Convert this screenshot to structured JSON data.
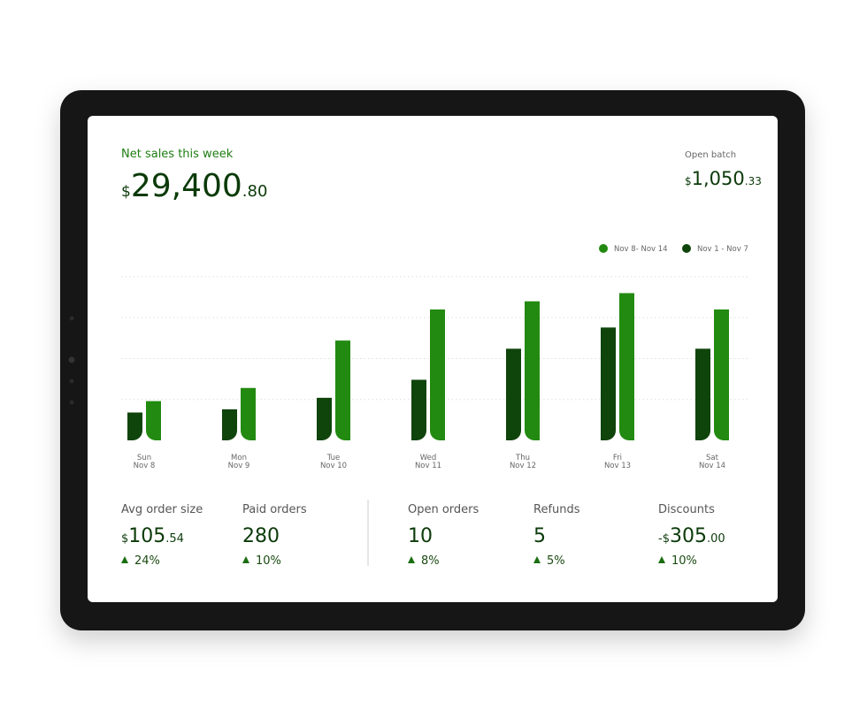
{
  "header": {
    "title": "Net sales this week",
    "currency": "$",
    "whole": "29,400",
    "cents": ".80"
  },
  "open_batch": {
    "label": "Open batch",
    "currency": "$",
    "whole": "1,050",
    "cents": ".33"
  },
  "chart_data": {
    "type": "bar",
    "categories": [
      "Sun",
      "Mon",
      "Tue",
      "Wed",
      "Thu",
      "Fri",
      "Sat"
    ],
    "dates": [
      "Nov 8",
      "Nov 9",
      "Nov 10",
      "Nov 11",
      "Nov 12",
      "Nov 13",
      "Nov 14"
    ],
    "series": [
      {
        "name": "Nov 8- Nov 14",
        "color": "#228a10",
        "values": [
          24,
          32,
          61,
          80,
          85,
          90,
          80
        ]
      },
      {
        "name": "Nov 1 - Nov 7",
        "color": "#0f440b",
        "values": [
          17,
          19,
          26,
          37,
          56,
          69,
          56
        ]
      }
    ],
    "ylim": [
      0,
      100
    ],
    "gridlines": [
      25,
      50,
      75,
      100
    ]
  },
  "stats": [
    {
      "label": "Avg order size",
      "prefix": "$",
      "value": "105",
      "suffix": ".54",
      "change": "24%"
    },
    {
      "label": "Paid orders",
      "value": "280",
      "change": "10%"
    },
    {
      "label": "Open orders",
      "value": "10",
      "change": "8%"
    },
    {
      "label": "Refunds",
      "value": "5",
      "change": "5%"
    },
    {
      "label": "Discounts",
      "prefix": "-$",
      "value": "305",
      "suffix": ".00",
      "change": "10%"
    }
  ]
}
